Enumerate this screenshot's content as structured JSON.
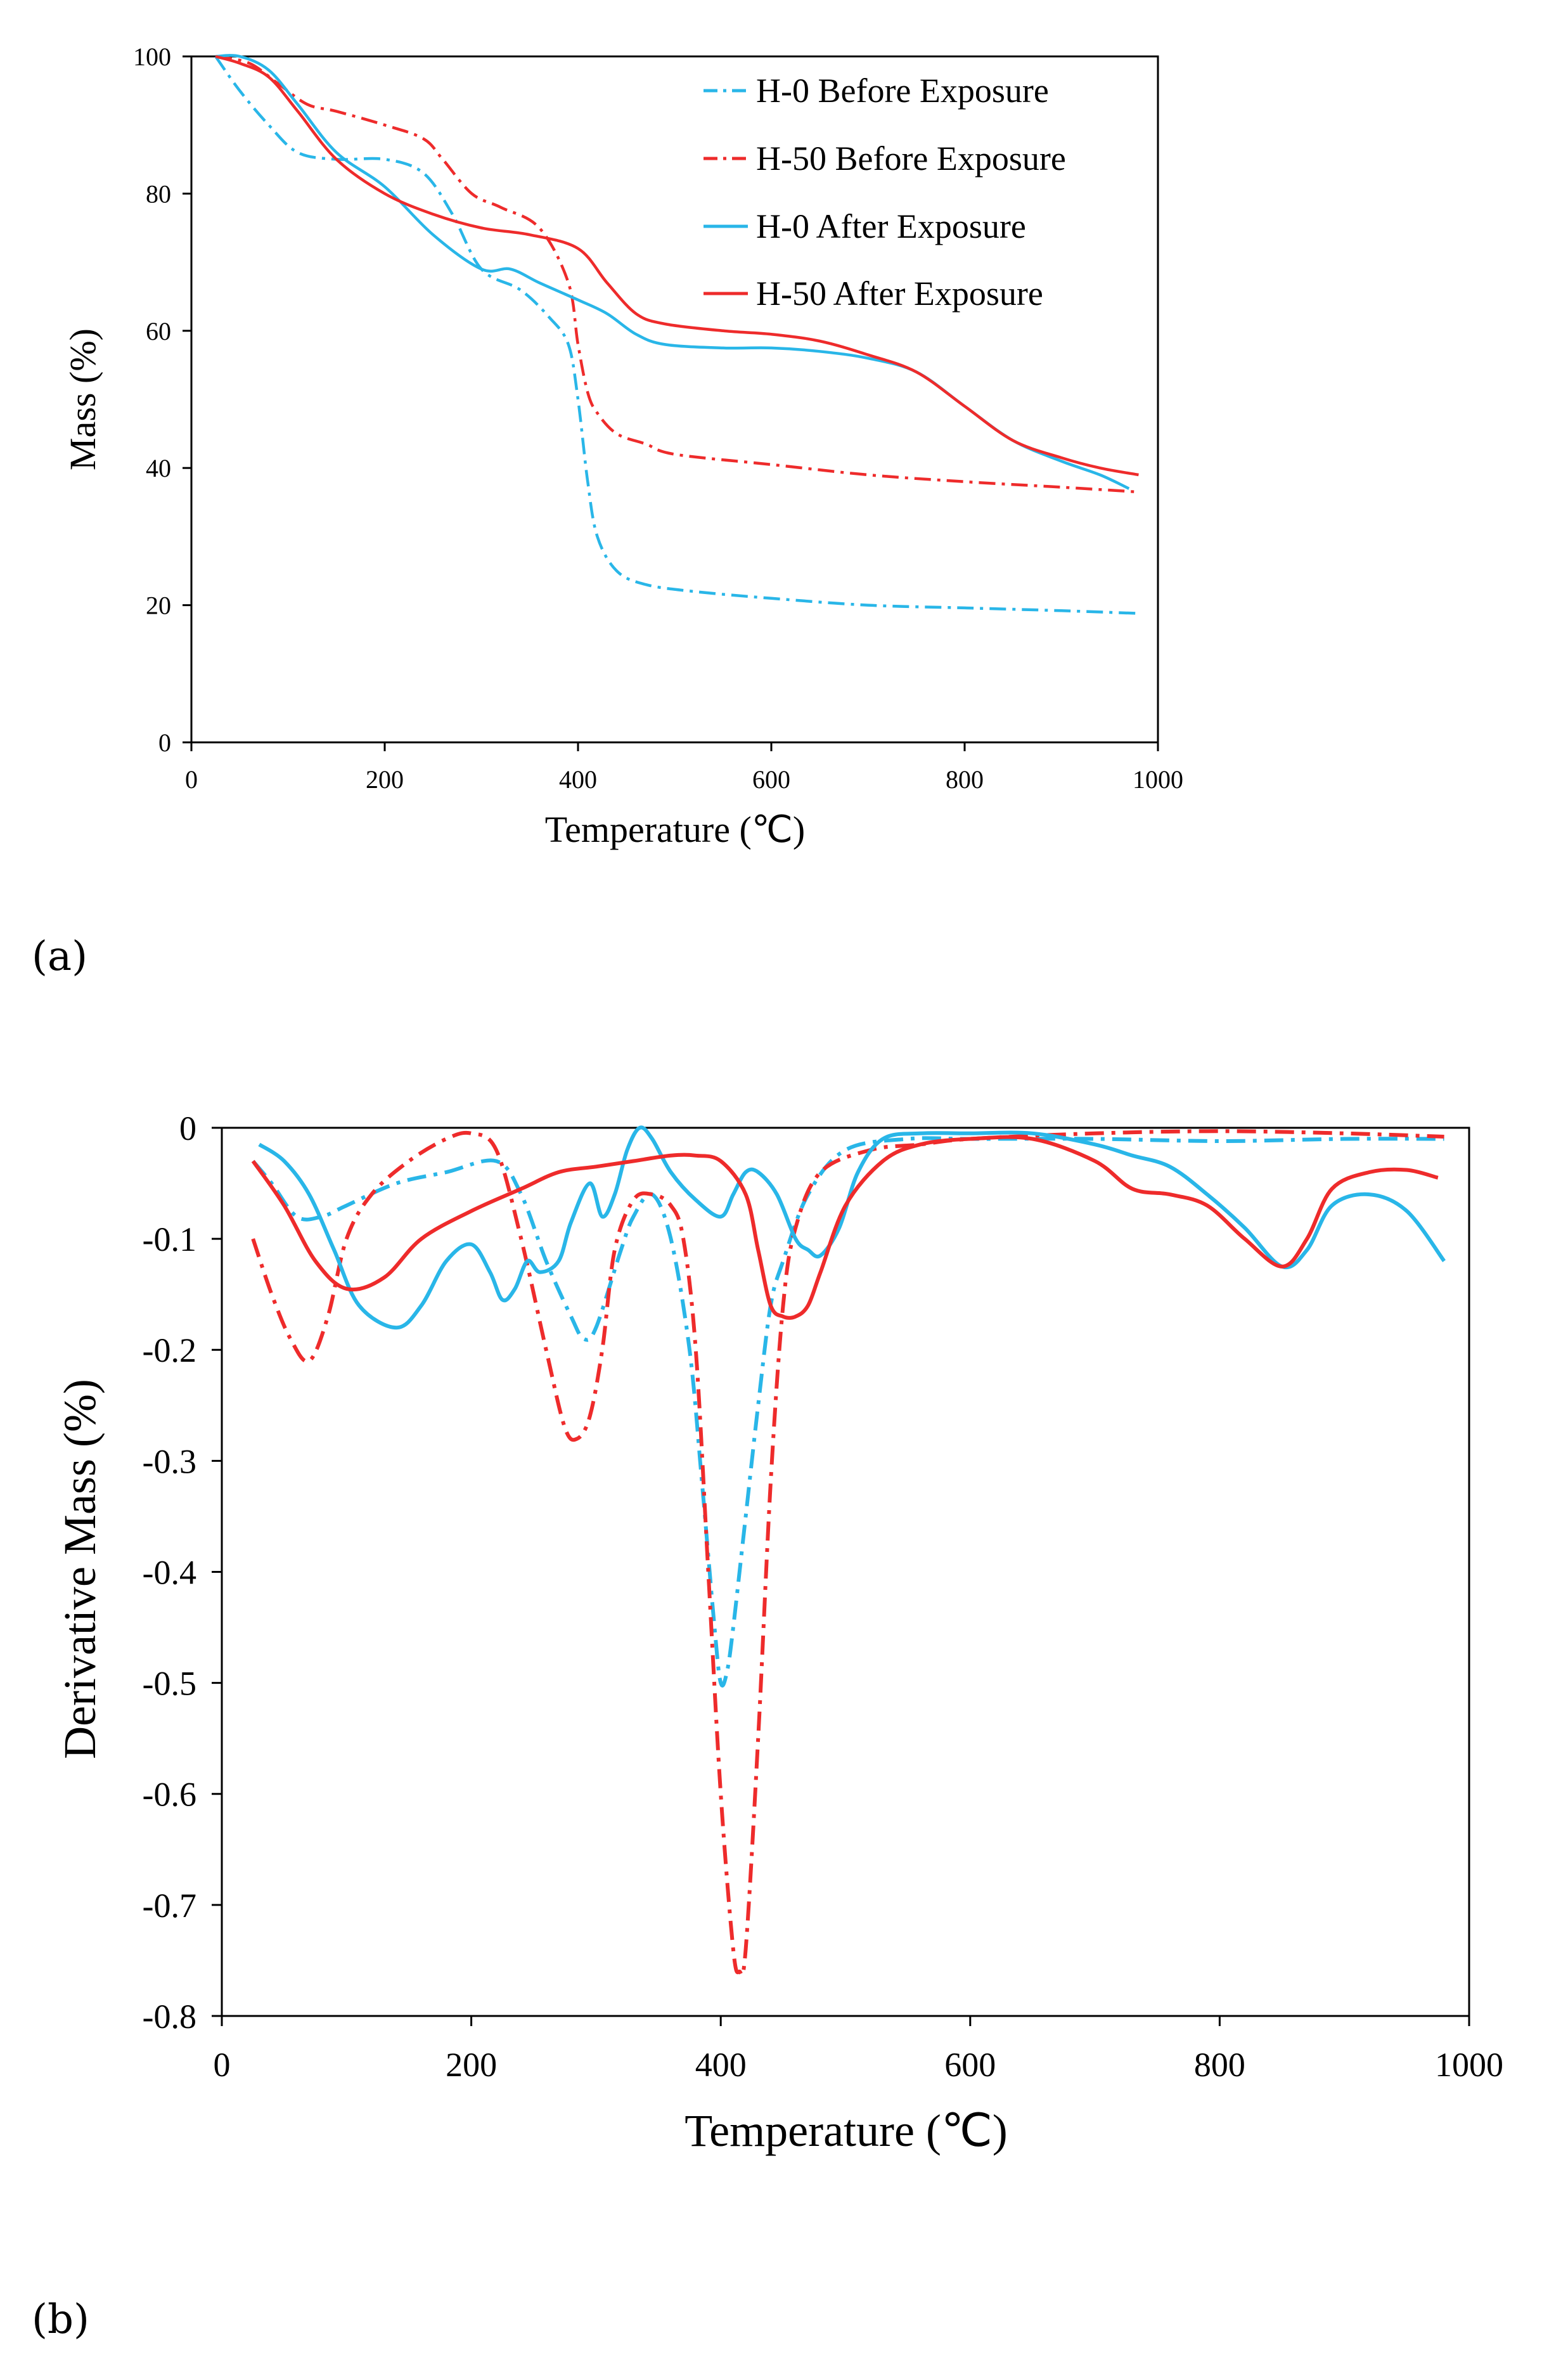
{
  "panels": [
    "(a)",
    "(b)"
  ],
  "colors": {
    "blue": "#29b6e8",
    "red": "#ee2b2b"
  },
  "chart_data": [
    {
      "type": "line",
      "xlabel": "Temperature (℃)",
      "ylabel": "Mass (%)",
      "xlim": [
        0,
        1000
      ],
      "ylim": [
        0,
        100
      ],
      "xticks": [
        0,
        200,
        400,
        600,
        800,
        1000
      ],
      "yticks": [
        0,
        20,
        40,
        60,
        80,
        100
      ],
      "legend": "top-right",
      "series": [
        {
          "name": "H-0 Before Exposure",
          "color": "#29b6e8",
          "dash": "dashdot",
          "x": [
            25,
            50,
            80,
            110,
            150,
            200,
            240,
            270,
            300,
            340,
            370,
            390,
            400,
            410,
            420,
            440,
            470,
            520,
            600,
            700,
            800,
            900,
            980
          ],
          "y": [
            100,
            95,
            90,
            86,
            85,
            85,
            83,
            77,
            69,
            66,
            62,
            58,
            50,
            38,
            30,
            25,
            23,
            22,
            21,
            20,
            19.6,
            19.2,
            18.8
          ]
        },
        {
          "name": "H-50 Before Exposure",
          "color": "#ee2b2b",
          "dash": "dashdot",
          "x": [
            25,
            60,
            90,
            120,
            150,
            200,
            240,
            260,
            290,
            320,
            360,
            390,
            400,
            410,
            420,
            440,
            470,
            500,
            600,
            700,
            800,
            900,
            980
          ],
          "y": [
            100,
            99,
            96,
            93,
            92,
            90,
            88,
            85,
            80,
            78,
            75,
            67,
            58,
            51,
            48,
            45,
            43.5,
            42,
            40.5,
            39,
            38,
            37.2,
            36.5
          ]
        },
        {
          "name": "H-0 After Exposure",
          "color": "#29b6e8",
          "dash": "solid",
          "x": [
            25,
            50,
            80,
            110,
            150,
            200,
            250,
            300,
            330,
            360,
            400,
            430,
            460,
            490,
            550,
            600,
            650,
            700,
            750,
            800,
            850,
            900,
            940,
            970
          ],
          "y": [
            100,
            100,
            98,
            93,
            86,
            81,
            74,
            69,
            69,
            67,
            64.5,
            62.5,
            59.5,
            58,
            57.5,
            57.5,
            57,
            56,
            54,
            49,
            44,
            41,
            39,
            37
          ]
        },
        {
          "name": "H-50 After Exposure",
          "color": "#ee2b2b",
          "dash": "solid",
          "x": [
            25,
            50,
            80,
            110,
            150,
            200,
            250,
            300,
            350,
            400,
            430,
            460,
            490,
            550,
            600,
            650,
            700,
            750,
            800,
            850,
            900,
            940,
            980
          ],
          "y": [
            100,
            99,
            97,
            92,
            85,
            80,
            77,
            75,
            74,
            72,
            67,
            62.5,
            61,
            60,
            59.5,
            58.5,
            56.5,
            54,
            49,
            44,
            41.5,
            40,
            39
          ]
        }
      ]
    },
    {
      "type": "line",
      "xlabel": "Temperature (℃)",
      "ylabel": "Derivative Mass (%)",
      "xlim": [
        0,
        1000
      ],
      "ylim": [
        -0.8,
        0
      ],
      "xticks": [
        0,
        200,
        400,
        600,
        800,
        1000
      ],
      "yticks": [
        0,
        -0.1,
        -0.2,
        -0.3,
        -0.4,
        -0.5,
        -0.6,
        -0.7,
        -0.8
      ],
      "series": [
        {
          "name": "H-0 Before Exposure",
          "color": "#29b6e8",
          "dash": "dashdot",
          "x": [
            25,
            40,
            60,
            80,
            100,
            140,
            180,
            220,
            240,
            260,
            280,
            290,
            300,
            320,
            330,
            345,
            360,
            375,
            385,
            395,
            400,
            405,
            410,
            420,
            430,
            440,
            450,
            470,
            500,
            550,
            600,
            700,
            800,
            900,
            980
          ],
          "y": [
            -0.03,
            -0.05,
            -0.08,
            -0.08,
            -0.07,
            -0.05,
            -0.04,
            -0.03,
            -0.06,
            -0.12,
            -0.17,
            -0.19,
            -0.18,
            -0.11,
            -0.08,
            -0.06,
            -0.1,
            -0.2,
            -0.32,
            -0.45,
            -0.5,
            -0.49,
            -0.45,
            -0.35,
            -0.25,
            -0.16,
            -0.12,
            -0.06,
            -0.02,
            -0.01,
            -0.01,
            -0.01,
            -0.012,
            -0.01,
            -0.01
          ]
        },
        {
          "name": "H-50 Before Exposure",
          "color": "#ee2b2b",
          "dash": "dashdot",
          "x": [
            25,
            40,
            55,
            70,
            85,
            100,
            120,
            150,
            180,
            200,
            220,
            240,
            260,
            275,
            285,
            295,
            305,
            315,
            330,
            345,
            360,
            370,
            380,
            390,
            400,
            410,
            415,
            420,
            430,
            440,
            450,
            460,
            480,
            520,
            560,
            600,
            700,
            800,
            900,
            980
          ],
          "y": [
            -0.1,
            -0.15,
            -0.19,
            -0.21,
            -0.17,
            -0.1,
            -0.06,
            -0.03,
            -0.01,
            -0.005,
            -0.02,
            -0.1,
            -0.2,
            -0.27,
            -0.28,
            -0.26,
            -0.2,
            -0.11,
            -0.065,
            -0.06,
            -0.07,
            -0.1,
            -0.2,
            -0.4,
            -0.6,
            -0.74,
            -0.76,
            -0.74,
            -0.55,
            -0.32,
            -0.16,
            -0.09,
            -0.04,
            -0.02,
            -0.015,
            -0.01,
            -0.005,
            -0.003,
            -0.005,
            -0.008
          ]
        },
        {
          "name": "H-0 After Exposure",
          "color": "#29b6e8",
          "dash": "solid",
          "x": [
            30,
            50,
            70,
            90,
            110,
            140,
            160,
            180,
            200,
            215,
            225,
            235,
            245,
            255,
            270,
            280,
            295,
            305,
            315,
            325,
            335,
            345,
            360,
            380,
            400,
            410,
            420,
            430,
            445,
            460,
            470,
            480,
            495,
            510,
            530,
            560,
            600,
            650,
            700,
            730,
            760,
            790,
            820,
            850,
            870,
            890,
            920,
            950,
            980
          ],
          "y": [
            -0.015,
            -0.03,
            -0.06,
            -0.11,
            -0.16,
            -0.18,
            -0.16,
            -0.12,
            -0.105,
            -0.13,
            -0.155,
            -0.145,
            -0.12,
            -0.13,
            -0.12,
            -0.085,
            -0.05,
            -0.08,
            -0.06,
            -0.02,
            0,
            -0.01,
            -0.04,
            -0.065,
            -0.08,
            -0.06,
            -0.04,
            -0.04,
            -0.06,
            -0.1,
            -0.11,
            -0.115,
            -0.09,
            -0.04,
            -0.01,
            -0.005,
            -0.005,
            -0.005,
            -0.015,
            -0.025,
            -0.035,
            -0.06,
            -0.09,
            -0.125,
            -0.11,
            -0.07,
            -0.06,
            -0.075,
            -0.12
          ]
        },
        {
          "name": "H-50 After Exposure",
          "color": "#ee2b2b",
          "dash": "solid",
          "x": [
            25,
            50,
            75,
            100,
            130,
            160,
            200,
            240,
            270,
            300,
            330,
            360,
            380,
            400,
            420,
            430,
            440,
            450,
            460,
            470,
            480,
            500,
            530,
            560,
            600,
            650,
            700,
            730,
            760,
            790,
            820,
            850,
            870,
            890,
            920,
            950,
            975
          ],
          "y": [
            -0.03,
            -0.07,
            -0.12,
            -0.145,
            -0.135,
            -0.1,
            -0.075,
            -0.055,
            -0.04,
            -0.035,
            -0.03,
            -0.025,
            -0.025,
            -0.03,
            -0.06,
            -0.11,
            -0.16,
            -0.17,
            -0.17,
            -0.16,
            -0.13,
            -0.07,
            -0.03,
            -0.015,
            -0.01,
            -0.01,
            -0.03,
            -0.055,
            -0.06,
            -0.07,
            -0.1,
            -0.125,
            -0.1,
            -0.055,
            -0.04,
            -0.038,
            -0.045
          ]
        }
      ]
    }
  ]
}
